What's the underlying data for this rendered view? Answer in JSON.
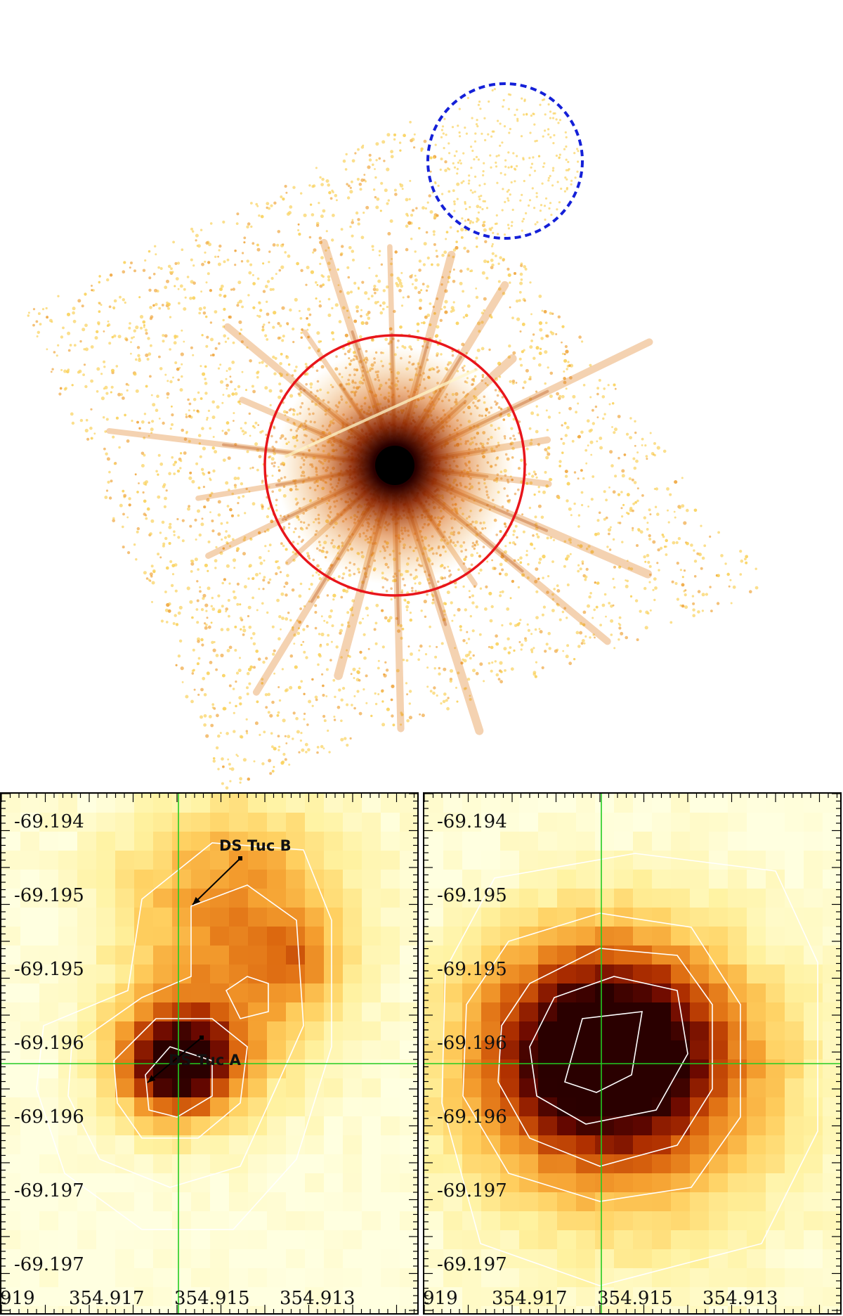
{
  "colors": {
    "source_region": "#e8151b",
    "background_region": "#1420d8",
    "crosshair": "#22cc22",
    "contour": "#ffffff",
    "colormap": [
      "#ffffe0",
      "#fff2a0",
      "#ffd060",
      "#f5a030",
      "#dd6a10",
      "#b03000",
      "#6a0800",
      "#2a0000"
    ]
  },
  "main_image": {
    "source_region_style": "solid",
    "background_region_style": "dashed"
  },
  "panels": [
    {
      "id": "left",
      "dec_labels": [
        "-69.194",
        "-69.195",
        "-69.195",
        "-69.196",
        "-69.196",
        "-69.197",
        "-69.197"
      ],
      "ra_labels": [
        "919",
        "354.917",
        "354.915",
        "354.913"
      ],
      "annotations": [
        {
          "label": "DS Tuc B"
        },
        {
          "label": "DS Tuc A"
        }
      ]
    },
    {
      "id": "right",
      "dec_labels": [
        "-69.194",
        "-69.195",
        "-69.195",
        "-69.196",
        "-69.196",
        "-69.197",
        "-69.197"
      ],
      "ra_labels": [
        "919",
        "354.917",
        "354.915",
        "354.913"
      ],
      "annotations": []
    }
  ]
}
